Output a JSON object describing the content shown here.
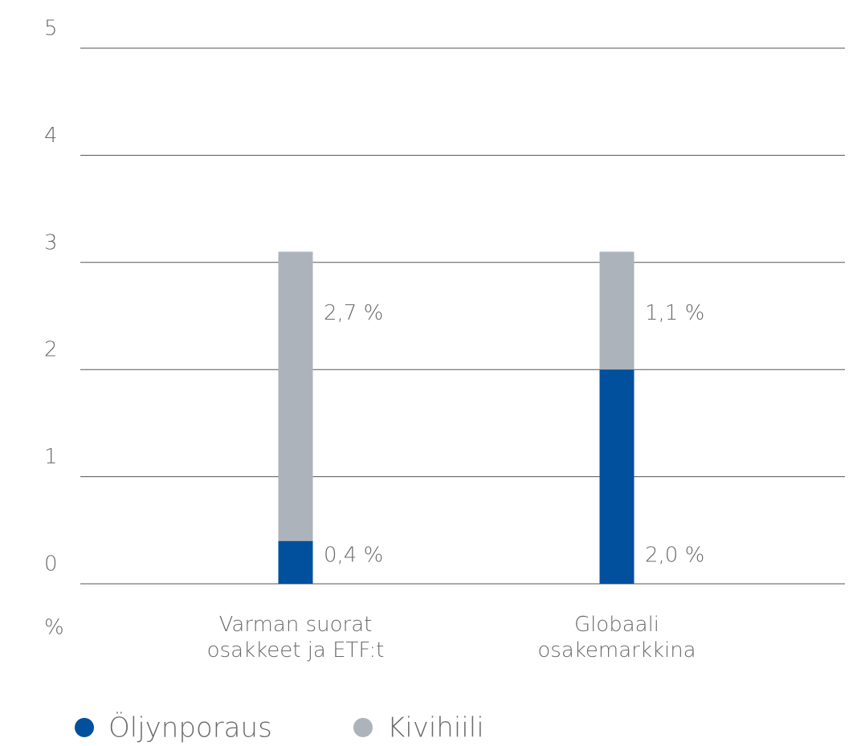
{
  "chart_data": {
    "type": "stacked_bar",
    "categories": [
      "Varman suorat\nosakkeet ja ETF:t",
      "Globaali\nosakemarkkina"
    ],
    "series": [
      {
        "name": "Öljynporaus",
        "color": "#00509e",
        "values": [
          0.4,
          2.0
        ],
        "value_labels": [
          "0,4 %",
          "2,0 %"
        ]
      },
      {
        "name": "Kivihiili",
        "color": "#adb3bb",
        "values": [
          2.7,
          1.1
        ],
        "value_labels": [
          "2,7 %",
          "1,1 %"
        ]
      }
    ],
    "y_label": "%",
    "ylim": [
      0,
      5
    ],
    "yticks": [
      0,
      1,
      2,
      3,
      4,
      5
    ],
    "grid": true,
    "legend": "bottom"
  }
}
